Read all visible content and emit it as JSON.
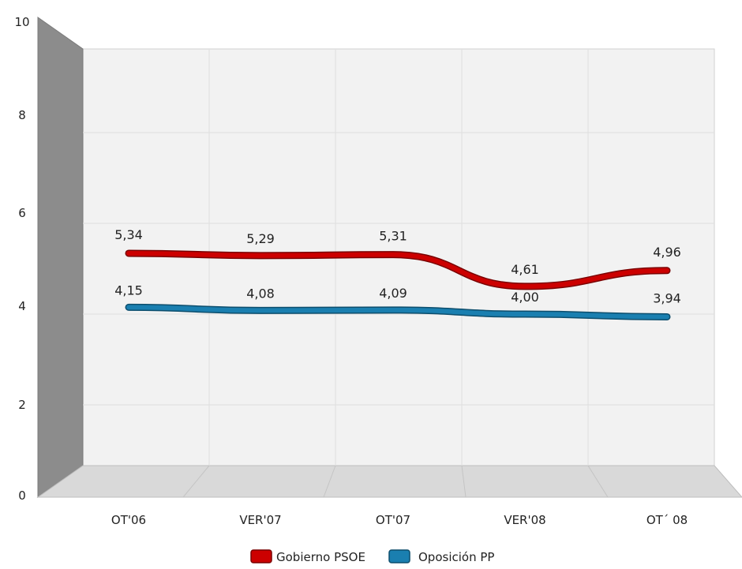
{
  "chart_data": {
    "type": "line",
    "title": "",
    "categories": [
      "OT'06",
      "VER'07",
      "OT'07",
      "VER'08",
      "OT´ 08"
    ],
    "ylim": [
      0,
      10
    ],
    "yticks": [
      "0",
      "2",
      "4",
      "6",
      "8",
      "10"
    ],
    "grid": true,
    "legend_position": "bottom-center",
    "series": [
      {
        "name": "Gobierno PSOE",
        "color": "#cc0000",
        "values": [
          5.34,
          5.29,
          5.31,
          4.61,
          4.96
        ],
        "labels": [
          "5,34",
          "5,29",
          "5,31",
          "4,61",
          "4,96"
        ]
      },
      {
        "name": "Oposición PP",
        "color": "#1a7fb0",
        "values": [
          4.15,
          4.08,
          4.09,
          4.0,
          3.94
        ],
        "labels": [
          "4,15",
          "4,08",
          "4,09",
          "4,00",
          "3,94"
        ]
      }
    ]
  }
}
